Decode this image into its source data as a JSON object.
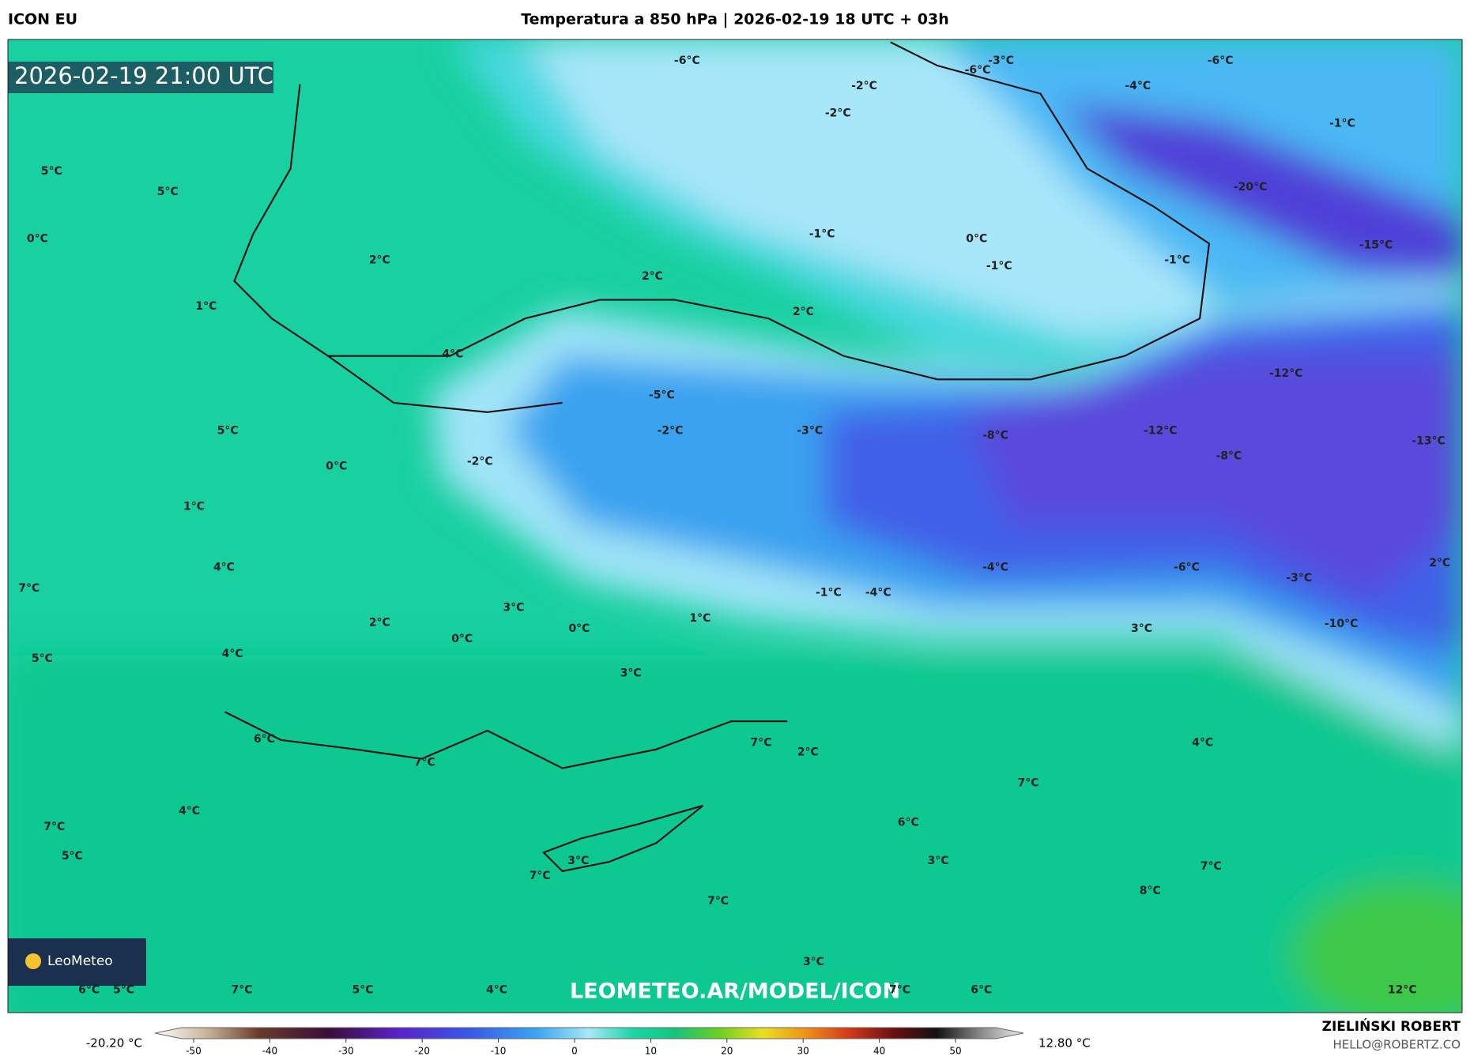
{
  "header": {
    "model": "ICON EU",
    "title": "Temperatura a 850 hPa | 2026-02-19 18 UTC + 03h"
  },
  "map": {
    "timestamp": "2026-02-19 21:00 UTC",
    "watermark": "LEOMETEO.AR/MODEL/ICON",
    "logo": "LeoMeteo",
    "labels": [
      "-6°C",
      "-6°C",
      "-3°C",
      "-6°C",
      "-4°C",
      "-2°C",
      "-2°C",
      "-1°C",
      "-20°C",
      "-15°C",
      "-1°C",
      "0°C",
      "-1°C",
      "-1°C",
      "5°C",
      "5°C",
      "0°C",
      "2°C",
      "2°C",
      "1°C",
      "2°C",
      "4°C",
      "-12°C",
      "-5°C",
      "-2°C",
      "-3°C",
      "-8°C",
      "-12°C",
      "-13°C",
      "5°C",
      "0°C",
      "-2°C",
      "-8°C",
      "1°C",
      "4°C",
      "-4°C",
      "-6°C",
      "-3°C",
      "2°C",
      "7°C",
      "-1°C",
      "-4°C",
      "3°C",
      "1°C",
      "2°C",
      "0°C",
      "0°C",
      "-10°C",
      "3°C",
      "4°C",
      "5°C",
      "3°C",
      "7°C",
      "2°C",
      "4°C",
      "6°C",
      "7°C",
      "7°C",
      "6°C",
      "4°C",
      "7°C",
      "5°C",
      "3°C",
      "3°C",
      "7°C",
      "7°C",
      "8°C",
      "7°C",
      "3°C",
      "6°C",
      "5°C",
      "7°C",
      "5°C",
      "4°C",
      "7°C",
      "6°C",
      "12°C"
    ]
  },
  "colorbar": {
    "min_label": "-20.20 °C",
    "max_label": "12.80 °C",
    "ticks": [
      -50,
      -40,
      -30,
      -20,
      -10,
      0,
      10,
      20,
      30,
      40,
      50
    ]
  },
  "footer": {
    "author": "ZIELIŃSKI ROBERT",
    "email": "HELLO@ROBERTZ.CO"
  }
}
